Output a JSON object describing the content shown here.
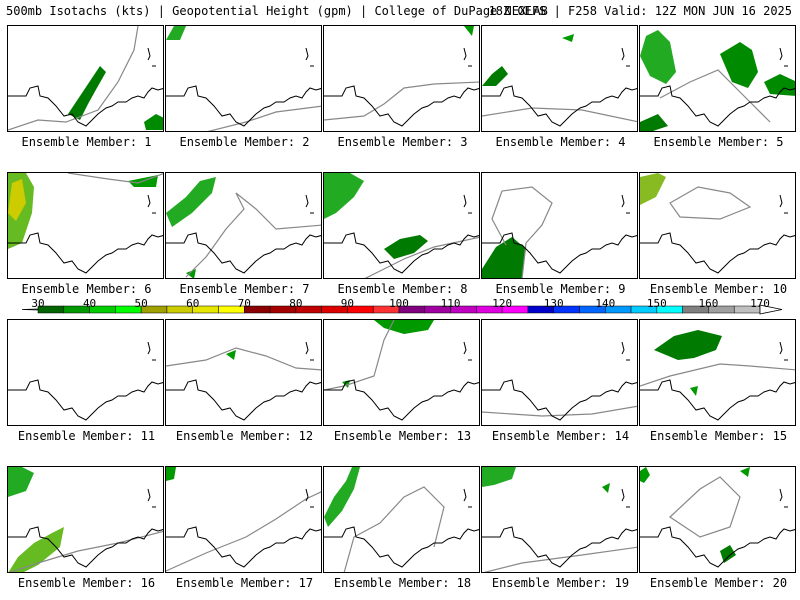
{
  "header": {
    "left": "500mb Isotachs (kts) | Geopotential Height (gpm) | College of DuPage NEXLAB",
    "right": "18Z GEFS | F258 Valid: 12Z MON JUN 16 2025"
  },
  "members": [
    "Ensemble Member: 1",
    "Ensemble Member: 2",
    "Ensemble Member: 3",
    "Ensemble Member: 4",
    "Ensemble Member: 5",
    "Ensemble Member: 6",
    "Ensemble Member: 7",
    "Ensemble Member: 8",
    "Ensemble Member: 9",
    "Ensemble Member: 10",
    "Ensemble Member: 11",
    "Ensemble Member: 12",
    "Ensemble Member: 13",
    "Ensemble Member: 14",
    "Ensemble Member: 15",
    "Ensemble Member: 16",
    "Ensemble Member: 17",
    "Ensemble Member: 18",
    "Ensemble Member: 19",
    "Ensemble Member: 20"
  ],
  "colorbar": {
    "labels": [
      "30",
      "40",
      "50",
      "60",
      "70",
      "80",
      "90",
      "100",
      "110",
      "120",
      "130",
      "140",
      "150",
      "160",
      "170"
    ],
    "colors": [
      "#006400",
      "#009900",
      "#00cc00",
      "#00ff00",
      "#a0a000",
      "#cccc00",
      "#e6e600",
      "#ffff00",
      "#8b0000",
      "#a50000",
      "#c00000",
      "#dd0000",
      "#ff0000",
      "#ff3333",
      "#800080",
      "#a000a0",
      "#c000c0",
      "#e000e0",
      "#ff00ff",
      "#0000cc",
      "#0033ff",
      "#0066ff",
      "#0099ff",
      "#00ccff",
      "#00ffff",
      "#808080",
      "#a0a0a0",
      "#c0c0c0"
    ]
  }
}
